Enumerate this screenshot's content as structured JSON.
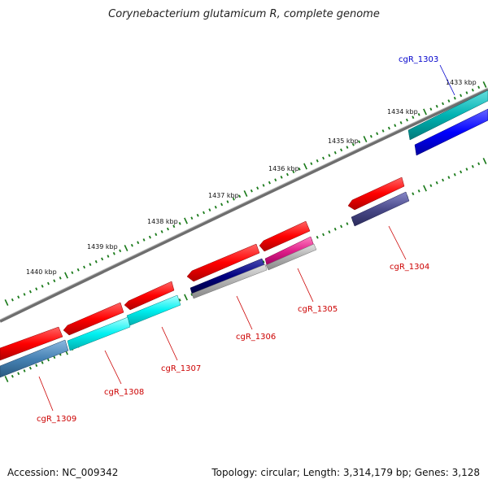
{
  "title": "Corynebacterium glutamicum R, complete genome",
  "footer": {
    "accession": "Accession: NC_009342",
    "info": "Topology: circular; Length: 3,314,179 bp; Genes: 3,128"
  },
  "ticks": [
    {
      "label": "1433 kbp"
    },
    {
      "label": "1434 kbp"
    },
    {
      "label": "1435 kbp"
    },
    {
      "label": "1436 kbp"
    },
    {
      "label": "1437 kbp"
    },
    {
      "label": "1438 kbp"
    },
    {
      "label": "1439 kbp"
    },
    {
      "label": "1440 kbp"
    }
  ],
  "genes": [
    {
      "label": "cgR_1303",
      "color": "#0000cc"
    },
    {
      "label": "cgR_1304",
      "color": "#cc0000"
    },
    {
      "label": "cgR_1305",
      "color": "#cc0000"
    },
    {
      "label": "cgR_1306",
      "color": "#cc0000"
    },
    {
      "label": "cgR_1307",
      "color": "#cc0000"
    },
    {
      "label": "cgR_1308",
      "color": "#cc0000"
    },
    {
      "label": "cgR_1309",
      "color": "#cc0000"
    }
  ],
  "colors": {
    "backbone": "#808080",
    "tick": "#1a7a1a",
    "cds": "#ff0000",
    "cyan": "#00e6e6",
    "teal": "#00b3b3",
    "blue": "#0000ff",
    "navy": "#000080",
    "slate": "#4a4a8a",
    "magenta": "#e0208a",
    "steel": "#4682b4",
    "grey_band": "#b0b0b0"
  }
}
